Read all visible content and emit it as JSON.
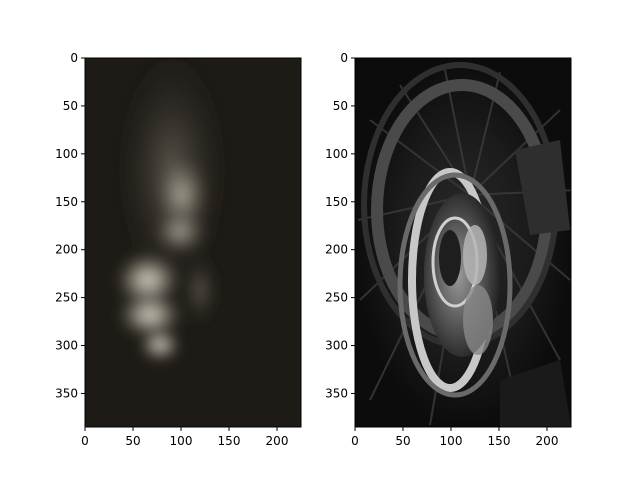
{
  "chart_data": [
    {
      "type": "image",
      "image_width": 225,
      "image_height": 385,
      "xlim": [
        0,
        225
      ],
      "ylim": [
        385,
        0
      ],
      "xticks": [
        0,
        50,
        100,
        150,
        200
      ],
      "yticks": [
        0,
        50,
        100,
        150,
        200,
        250,
        300,
        350
      ],
      "xtick_labels": [
        "0",
        "50",
        "100",
        "150",
        "200"
      ],
      "ytick_labels": [
        "0",
        "50",
        "100",
        "150",
        "200",
        "250",
        "300",
        "350"
      ],
      "grid": false,
      "title": "",
      "xlabel": "",
      "ylabel": ""
    },
    {
      "type": "image",
      "image_width": 225,
      "image_height": 385,
      "xlim": [
        0,
        225
      ],
      "ylim": [
        385,
        0
      ],
      "xticks": [
        0,
        50,
        100,
        150,
        200
      ],
      "yticks": [
        0,
        50,
        100,
        150,
        200,
        250,
        300,
        350
      ],
      "xtick_labels": [
        "0",
        "50",
        "100",
        "150",
        "200"
      ],
      "ytick_labels": [
        "0",
        "50",
        "100",
        "150",
        "200",
        "250",
        "300",
        "350"
      ],
      "grid": false,
      "title": "",
      "xlabel": "",
      "ylabel": ""
    }
  ]
}
